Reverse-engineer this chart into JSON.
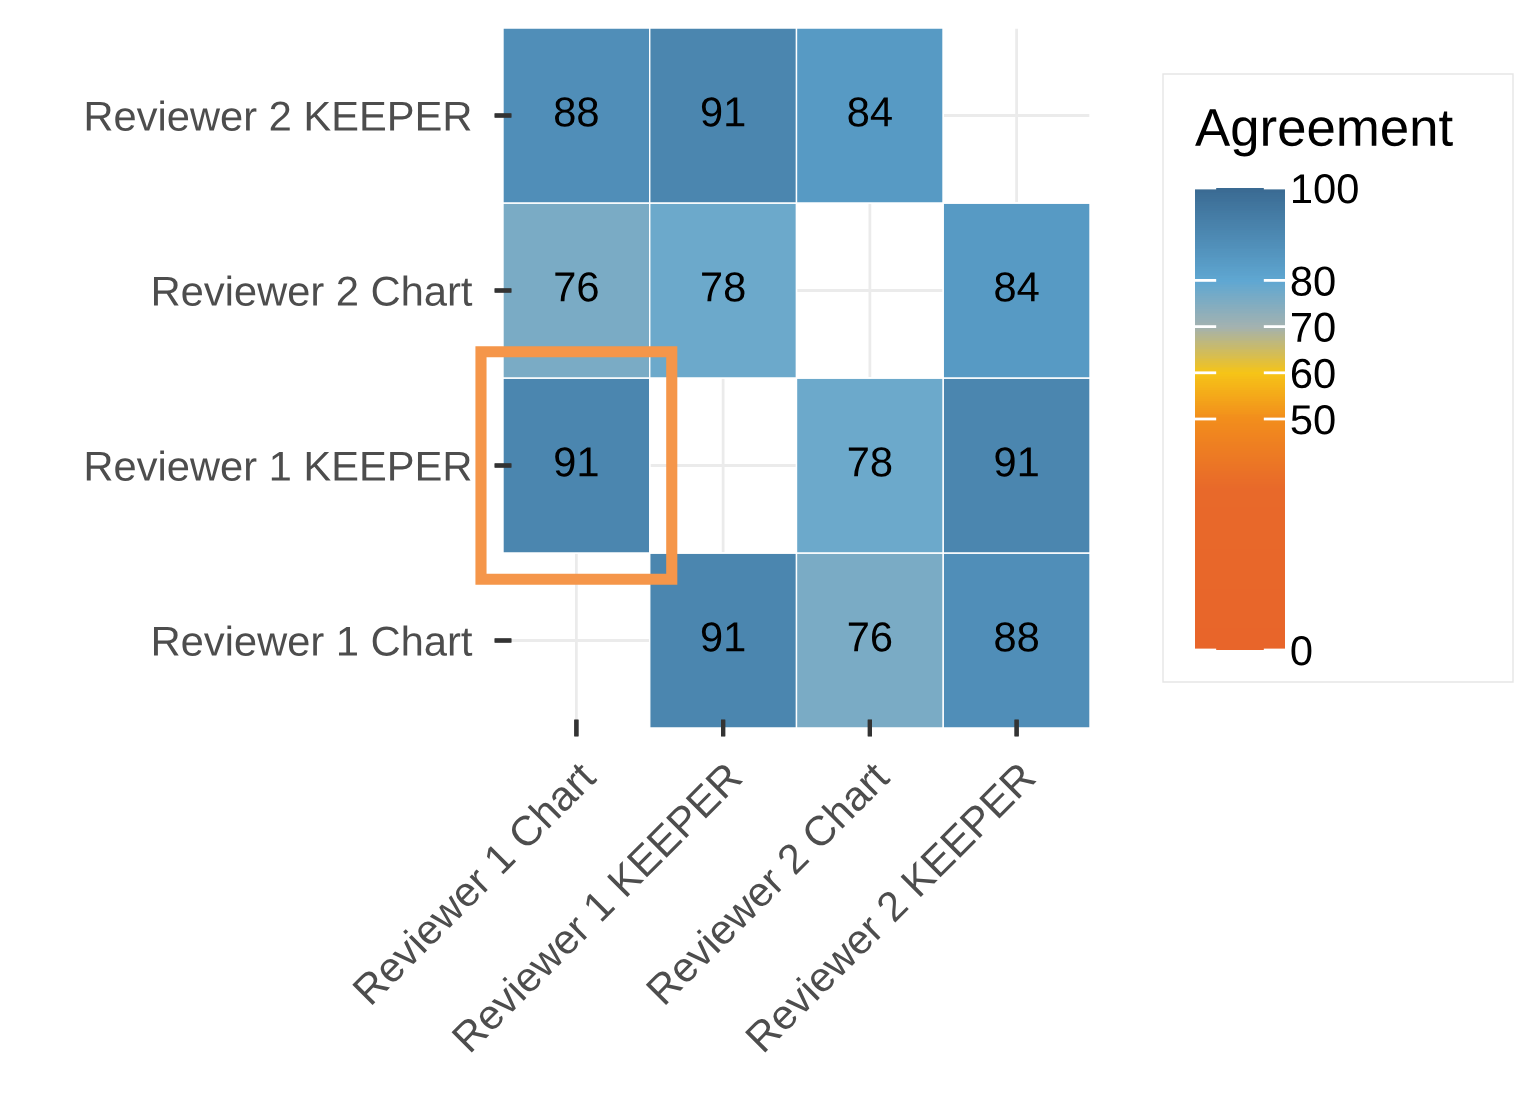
{
  "chart_data": {
    "type": "heatmap",
    "categories": [
      "Reviewer 1 Chart",
      "Reviewer 1 KEEPER",
      "Reviewer 2 Chart",
      "Reviewer 2 KEEPER"
    ],
    "y_categories": [
      "Reviewer 2 KEEPER",
      "Reviewer 2 Chart",
      "Reviewer 1 KEEPER",
      "Reviewer 1 Chart"
    ],
    "cells": [
      [
        88,
        91,
        84,
        null
      ],
      [
        76,
        78,
        null,
        84
      ],
      [
        91,
        null,
        78,
        91
      ],
      [
        null,
        91,
        76,
        88
      ]
    ],
    "data_labels": true,
    "clabel": "Agreement",
    "clim": [
      0,
      100
    ],
    "cticks": [
      0,
      50,
      60,
      70,
      80,
      100
    ],
    "grid": true
  }
}
